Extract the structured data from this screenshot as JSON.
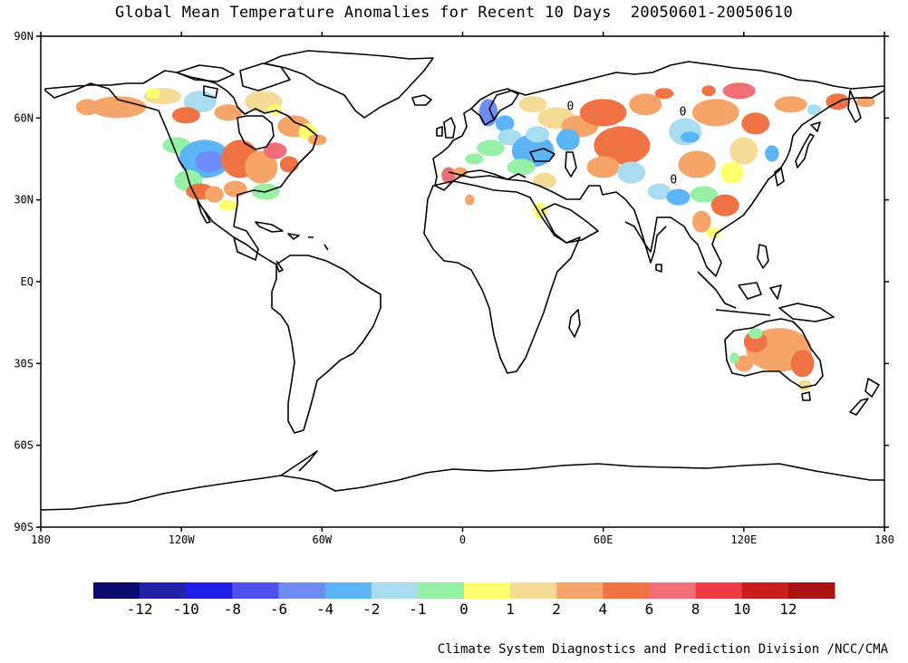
{
  "title": "Global Mean Temperature Anomalies for Recent 10 Days  20050601-20050610",
  "credit": "Climate System Diagnostics and Prediction Division /NCC/CMA",
  "lat_ticks": [
    {
      "label": "90N",
      "lat": 90
    },
    {
      "label": "60N",
      "lat": 60
    },
    {
      "label": "30N",
      "lat": 30
    },
    {
      "label": "EQ",
      "lat": 0
    },
    {
      "label": "30S",
      "lat": -30
    },
    {
      "label": "60S",
      "lat": -60
    },
    {
      "label": "90S",
      "lat": -90
    }
  ],
  "lon_ticks": [
    {
      "label": "180",
      "lon": -180
    },
    {
      "label": "120W",
      "lon": -120
    },
    {
      "label": "60W",
      "lon": -60
    },
    {
      "label": "0",
      "lon": 0
    },
    {
      "label": "60E",
      "lon": 60
    },
    {
      "label": "120E",
      "lon": 120
    },
    {
      "label": "180",
      "lon": 180
    }
  ],
  "contour_labels": [
    {
      "text": "0",
      "lon": 46,
      "lat": 63
    },
    {
      "text": "0",
      "lon": 94,
      "lat": 61
    },
    {
      "text": "0",
      "lon": 90,
      "lat": 36
    }
  ],
  "legend": {
    "colors": [
      "#0a0a6e",
      "#2323aa",
      "#1e1ee6",
      "#5050f0",
      "#6e8cf5",
      "#5ab4f5",
      "#aadcf0",
      "#96f0a5",
      "#ffff6e",
      "#f5dc96",
      "#f5a569",
      "#f07346",
      "#f06e78",
      "#ee3c46",
      "#c81e1e",
      "#aa1414"
    ],
    "labels": [
      "-12",
      "-10",
      "-8",
      "-6",
      "-4",
      "-2",
      "-1",
      "0",
      "1",
      "2",
      "4",
      "6",
      "8",
      "10",
      "12"
    ]
  },
  "anomaly_patches": [
    {
      "lon": -147,
      "lat": 64,
      "rx": 12,
      "ry": 4,
      "c": "#f5a569"
    },
    {
      "lon": -160,
      "lat": 64,
      "rx": 5,
      "ry": 3,
      "c": "#f5a569"
    },
    {
      "lon": -128,
      "lat": 68,
      "rx": 8,
      "ry": 3,
      "c": "#f5dc96"
    },
    {
      "lon": -132,
      "lat": 69,
      "rx": 3,
      "ry": 2,
      "c": "#ffff6e"
    },
    {
      "lon": -112,
      "lat": 66,
      "rx": 7,
      "ry": 4,
      "c": "#aadcf0"
    },
    {
      "lon": -118,
      "lat": 61,
      "rx": 6,
      "ry": 3,
      "c": "#f07346"
    },
    {
      "lon": -100,
      "lat": 62,
      "rx": 6,
      "ry": 3,
      "c": "#f5a569"
    },
    {
      "lon": -85,
      "lat": 66,
      "rx": 8,
      "ry": 4,
      "c": "#f5dc96"
    },
    {
      "lon": -80,
      "lat": 63,
      "rx": 3,
      "ry": 2,
      "c": "#ffff6e"
    },
    {
      "lon": -72,
      "lat": 57,
      "rx": 7,
      "ry": 4,
      "c": "#f5a569"
    },
    {
      "lon": -66,
      "lat": 55,
      "rx": 4,
      "ry": 3,
      "c": "#ffff6e"
    },
    {
      "lon": -62,
      "lat": 52,
      "rx": 4,
      "ry": 2,
      "c": "#f5a569"
    },
    {
      "lon": -122,
      "lat": 50,
      "rx": 6,
      "ry": 3,
      "c": "#96f0a5"
    },
    {
      "lon": -110,
      "lat": 45,
      "rx": 11,
      "ry": 7,
      "c": "#5ab4f5"
    },
    {
      "lon": -108,
      "lat": 44,
      "rx": 6,
      "ry": 4,
      "c": "#6e8cf5"
    },
    {
      "lon": -117,
      "lat": 37,
      "rx": 6,
      "ry": 4,
      "c": "#96f0a5"
    },
    {
      "lon": -112,
      "lat": 33,
      "rx": 6,
      "ry": 3,
      "c": "#f07346"
    },
    {
      "lon": -106,
      "lat": 32,
      "rx": 4,
      "ry": 3,
      "c": "#f5a569"
    },
    {
      "lon": -95,
      "lat": 45,
      "rx": 8,
      "ry": 7,
      "c": "#f07346"
    },
    {
      "lon": -86,
      "lat": 42,
      "rx": 7,
      "ry": 6,
      "c": "#f5a569"
    },
    {
      "lon": -80,
      "lat": 48,
      "rx": 5,
      "ry": 3,
      "c": "#f06e78"
    },
    {
      "lon": -74,
      "lat": 43,
      "rx": 4,
      "ry": 3,
      "c": "#f07346"
    },
    {
      "lon": -84,
      "lat": 33,
      "rx": 6,
      "ry": 3,
      "c": "#96f0a5"
    },
    {
      "lon": -97,
      "lat": 34,
      "rx": 5,
      "ry": 3,
      "c": "#f5a569"
    },
    {
      "lon": -100,
      "lat": 28,
      "rx": 4,
      "ry": 2,
      "c": "#ffff6e"
    },
    {
      "lon": -6,
      "lat": 39,
      "rx": 3,
      "ry": 3,
      "c": "#f06e78"
    },
    {
      "lon": -1,
      "lat": 40,
      "rx": 3,
      "ry": 2,
      "c": "#f5a569"
    },
    {
      "lon": 5,
      "lat": 45,
      "rx": 4,
      "ry": 2,
      "c": "#96f0a5"
    },
    {
      "lon": 3,
      "lat": 30,
      "rx": 2,
      "ry": 2,
      "c": "#f5a569"
    },
    {
      "lon": 12,
      "lat": 49,
      "rx": 6,
      "ry": 3,
      "c": "#96f0a5"
    },
    {
      "lon": 11,
      "lat": 62,
      "rx": 4,
      "ry": 5,
      "c": "#6e8cf5"
    },
    {
      "lon": 18,
      "lat": 58,
      "rx": 4,
      "ry": 3,
      "c": "#5ab4f5"
    },
    {
      "lon": 20,
      "lat": 53,
      "rx": 5,
      "ry": 3,
      "c": "#aadcf0"
    },
    {
      "lon": 30,
      "lat": 48,
      "rx": 9,
      "ry": 6,
      "c": "#5ab4f5"
    },
    {
      "lon": 32,
      "lat": 54,
      "rx": 5,
      "ry": 3,
      "c": "#aadcf0"
    },
    {
      "lon": 25,
      "lat": 42,
      "rx": 6,
      "ry": 3,
      "c": "#96f0a5"
    },
    {
      "lon": 35,
      "lat": 37,
      "rx": 5,
      "ry": 3,
      "c": "#f5dc96"
    },
    {
      "lon": 33,
      "lat": 26,
      "rx": 3,
      "ry": 3,
      "c": "#ffff6e"
    },
    {
      "lon": 30,
      "lat": 65,
      "rx": 6,
      "ry": 3,
      "c": "#f5dc96"
    },
    {
      "lon": 40,
      "lat": 60,
      "rx": 8,
      "ry": 4,
      "c": "#f5dc96"
    },
    {
      "lon": 50,
      "lat": 57,
      "rx": 8,
      "ry": 4,
      "c": "#f5a569"
    },
    {
      "lon": 45,
      "lat": 52,
      "rx": 5,
      "ry": 4,
      "c": "#5ab4f5"
    },
    {
      "lon": 60,
      "lat": 62,
      "rx": 10,
      "ry": 5,
      "c": "#f07346"
    },
    {
      "lon": 68,
      "lat": 50,
      "rx": 12,
      "ry": 7,
      "c": "#f07346"
    },
    {
      "lon": 60,
      "lat": 42,
      "rx": 7,
      "ry": 4,
      "c": "#f5a569"
    },
    {
      "lon": 72,
      "lat": 40,
      "rx": 6,
      "ry": 4,
      "c": "#aadcf0"
    },
    {
      "lon": 78,
      "lat": 65,
      "rx": 7,
      "ry": 4,
      "c": "#f5a569"
    },
    {
      "lon": 86,
      "lat": 69,
      "rx": 4,
      "ry": 2,
      "c": "#f07346"
    },
    {
      "lon": 95,
      "lat": 55,
      "rx": 7,
      "ry": 5,
      "c": "#aadcf0"
    },
    {
      "lon": 97,
      "lat": 53,
      "rx": 4,
      "ry": 2,
      "c": "#5ab4f5"
    },
    {
      "lon": 100,
      "lat": 43,
      "rx": 8,
      "ry": 5,
      "c": "#f5a569"
    },
    {
      "lon": 84,
      "lat": 33,
      "rx": 5,
      "ry": 3,
      "c": "#aadcf0"
    },
    {
      "lon": 92,
      "lat": 31,
      "rx": 5,
      "ry": 3,
      "c": "#5ab4f5"
    },
    {
      "lon": 103,
      "lat": 32,
      "rx": 6,
      "ry": 3,
      "c": "#96f0a5"
    },
    {
      "lon": 108,
      "lat": 62,
      "rx": 10,
      "ry": 5,
      "c": "#f5a569"
    },
    {
      "lon": 118,
      "lat": 70,
      "rx": 7,
      "ry": 3,
      "c": "#f06e78"
    },
    {
      "lon": 105,
      "lat": 70,
      "rx": 3,
      "ry": 2,
      "c": "#f07346"
    },
    {
      "lon": 125,
      "lat": 58,
      "rx": 6,
      "ry": 4,
      "c": "#f07346"
    },
    {
      "lon": 120,
      "lat": 48,
      "rx": 6,
      "ry": 5,
      "c": "#f5dc96"
    },
    {
      "lon": 115,
      "lat": 40,
      "rx": 5,
      "ry": 4,
      "c": "#ffff6e"
    },
    {
      "lon": 132,
      "lat": 47,
      "rx": 3,
      "ry": 3,
      "c": "#5ab4f5"
    },
    {
      "lon": 112,
      "lat": 28,
      "rx": 6,
      "ry": 4,
      "c": "#f07346"
    },
    {
      "lon": 102,
      "lat": 22,
      "rx": 4,
      "ry": 4,
      "c": "#f5a569"
    },
    {
      "lon": 107,
      "lat": 18,
      "rx": 3,
      "ry": 2,
      "c": "#ffff6e"
    },
    {
      "lon": 140,
      "lat": 65,
      "rx": 7,
      "ry": 3,
      "c": "#f5a569"
    },
    {
      "lon": 150,
      "lat": 63,
      "rx": 3,
      "ry": 2,
      "c": "#aadcf0"
    },
    {
      "lon": 160,
      "lat": 66,
      "rx": 5,
      "ry": 3,
      "c": "#f07346"
    },
    {
      "lon": 172,
      "lat": 66,
      "rx": 4,
      "ry": 2,
      "c": "#f5a569"
    },
    {
      "lon": 135,
      "lat": -25,
      "rx": 14,
      "ry": 8,
      "c": "#f5a569"
    },
    {
      "lon": 125,
      "lat": -22,
      "rx": 5,
      "ry": 4,
      "c": "#f07346"
    },
    {
      "lon": 120,
      "lat": -30,
      "rx": 4,
      "ry": 3,
      "c": "#f5a569"
    },
    {
      "lon": 145,
      "lat": -30,
      "rx": 5,
      "ry": 5,
      "c": "#f07346"
    },
    {
      "lon": 146,
      "lat": -38,
      "rx": 3,
      "ry": 2,
      "c": "#f5dc96"
    },
    {
      "lon": 125,
      "lat": -19,
      "rx": 3,
      "ry": 2,
      "c": "#96f0a5"
    },
    {
      "lon": 116,
      "lat": -28,
      "rx": 2,
      "ry": 2,
      "c": "#96f0a5"
    }
  ]
}
